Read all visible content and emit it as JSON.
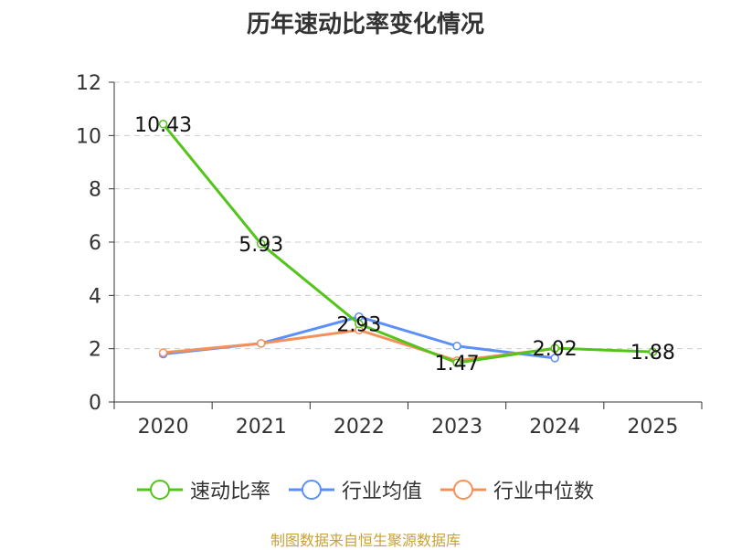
{
  "title": "历年速动比率变化情况",
  "source": "制图数据来自恒生聚源数据库",
  "chart_data": {
    "type": "line",
    "title": "历年速动比率变化情况",
    "categories": [
      "2020",
      "2021",
      "2022",
      "2023",
      "2024",
      "2025"
    ],
    "ylim": [
      0,
      12
    ],
    "yticks": [
      0,
      2,
      4,
      6,
      8,
      10,
      12
    ],
    "grid": true,
    "legend_position": "bottom",
    "series": [
      {
        "name": "速动比率",
        "color": "#52c41a",
        "values": [
          10.43,
          5.93,
          2.93,
          1.47,
          2.02,
          1.88
        ],
        "labels": [
          "10.43",
          "5.93",
          "2.93",
          "1.47",
          "2.02",
          "1.88"
        ]
      },
      {
        "name": "行业均值",
        "color": "#5b8ff9",
        "values": [
          1.8,
          2.2,
          3.2,
          2.1,
          1.65,
          null
        ]
      },
      {
        "name": "行业中位数",
        "color": "#f6905b",
        "values": [
          1.85,
          2.2,
          2.7,
          1.55,
          2.0,
          null
        ]
      }
    ]
  }
}
